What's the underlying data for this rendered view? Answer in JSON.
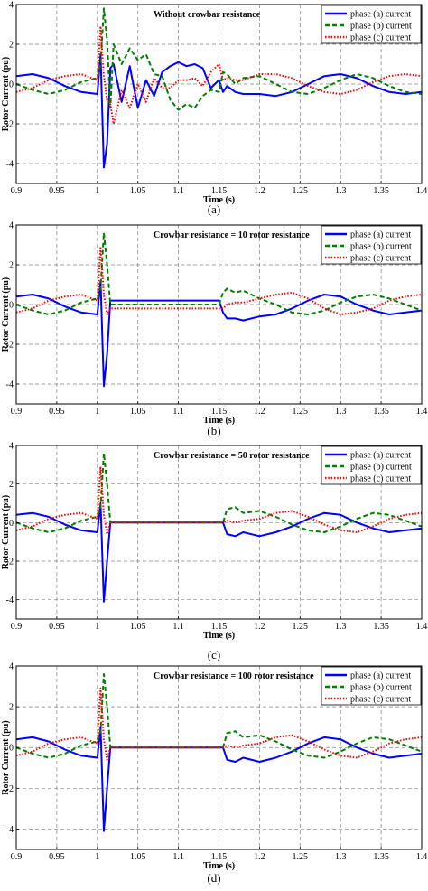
{
  "figure": {
    "subfigure_labels": [
      "(a)",
      "(b)",
      "(c)",
      "(d)"
    ]
  },
  "colors": {
    "phase_a": "#0000ff",
    "phase_b": "#008000",
    "phase_c": "#ff0000",
    "grid": "#808080",
    "axes": "#000000"
  },
  "chart_data": [
    {
      "type": "line",
      "annotation": "Without crowbar resistance",
      "xlabel": "Time (s)",
      "ylabel": "Rotor Current (pu)",
      "xlim": [
        0.9,
        1.4
      ],
      "ylim": [
        -5,
        4
      ],
      "xticks": [
        "0.9",
        "0.95",
        "1",
        "1.05",
        "1.1",
        "1.15",
        "1.2",
        "1.25",
        "1.3",
        "1.35",
        "1.4"
      ],
      "yticks": [
        "-4",
        "-2",
        "0",
        "2",
        "4"
      ],
      "grid": true,
      "legend_position": "top-right",
      "series": [
        {
          "name": "phase (a) current",
          "color": "#0000ff",
          "style": "solid",
          "x": [
            0.9,
            0.92,
            0.94,
            0.96,
            0.98,
            1.0,
            1.004,
            1.008,
            1.012,
            1.016,
            1.02,
            1.03,
            1.04,
            1.05,
            1.06,
            1.07,
            1.08,
            1.09,
            1.1,
            1.11,
            1.12,
            1.13,
            1.14,
            1.15,
            1.155,
            1.16,
            1.17,
            1.18,
            1.2,
            1.22,
            1.24,
            1.26,
            1.28,
            1.3,
            1.32,
            1.34,
            1.36,
            1.38,
            1.4
          ],
          "y": [
            0.4,
            0.5,
            0.3,
            -0.1,
            -0.4,
            -0.5,
            1.5,
            -4.2,
            -3.0,
            0.8,
            1.0,
            -0.9,
            0.9,
            -1.2,
            0.2,
            -0.6,
            0.6,
            0.9,
            1.1,
            0.9,
            1.0,
            0.8,
            -0.2,
            0.2,
            -0.4,
            -0.1,
            -0.4,
            -0.5,
            -0.5,
            -0.6,
            -0.4,
            0.0,
            0.4,
            0.5,
            0.3,
            -0.1,
            -0.4,
            -0.5,
            -0.4
          ]
        },
        {
          "name": "phase (b) current",
          "color": "#008000",
          "style": "dashed",
          "x": [
            0.9,
            0.92,
            0.94,
            0.96,
            0.98,
            1.0,
            1.004,
            1.008,
            1.012,
            1.016,
            1.02,
            1.03,
            1.04,
            1.05,
            1.06,
            1.07,
            1.08,
            1.09,
            1.1,
            1.11,
            1.12,
            1.13,
            1.14,
            1.15,
            1.155,
            1.16,
            1.17,
            1.18,
            1.2,
            1.22,
            1.24,
            1.26,
            1.28,
            1.3,
            1.32,
            1.34,
            1.36,
            1.38,
            1.4
          ],
          "y": [
            0.0,
            -0.3,
            -0.5,
            -0.3,
            0.1,
            0.3,
            1.0,
            3.8,
            2.2,
            -1.2,
            2.0,
            1.0,
            1.8,
            1.2,
            1.5,
            0.5,
            0.4,
            -0.8,
            -1.3,
            -1.0,
            -1.2,
            -0.6,
            -0.3,
            -0.4,
            0.6,
            0.5,
            0.0,
            0.3,
            0.4,
            0.0,
            -0.4,
            -0.5,
            -0.2,
            0.2,
            0.5,
            0.3,
            -0.1,
            -0.4,
            -0.5
          ]
        },
        {
          "name": "phase (c) current",
          "color": "#ff0000",
          "style": "dotted",
          "x": [
            0.9,
            0.92,
            0.94,
            0.96,
            0.98,
            1.0,
            1.004,
            1.008,
            1.012,
            1.016,
            1.02,
            1.03,
            1.04,
            1.05,
            1.06,
            1.07,
            1.08,
            1.09,
            1.1,
            1.11,
            1.12,
            1.13,
            1.14,
            1.15,
            1.155,
            1.16,
            1.17,
            1.18,
            1.2,
            1.22,
            1.24,
            1.26,
            1.28,
            1.3,
            1.32,
            1.34,
            1.36,
            1.38,
            1.4
          ],
          "y": [
            -0.4,
            -0.2,
            0.2,
            0.4,
            0.5,
            0.2,
            2.9,
            0.4,
            -0.8,
            -1.0,
            -2.0,
            -0.3,
            -1.2,
            0.0,
            -0.9,
            0.3,
            -0.2,
            -0.2,
            0.2,
            0.2,
            0.3,
            -0.1,
            0.6,
            1.0,
            0.2,
            0.3,
            0.2,
            0.2,
            0.5,
            0.5,
            0.3,
            -0.1,
            -0.4,
            -0.5,
            -0.3,
            0.1,
            0.4,
            0.5,
            0.4
          ]
        }
      ]
    },
    {
      "type": "line",
      "annotation": "Crowbar resistance = 10 rotor resistance",
      "xlabel": "Time (s)",
      "ylabel": "Rotor Current (pu)",
      "xlim": [
        0.9,
        1.4
      ],
      "ylim": [
        -5,
        4
      ],
      "xticks": [
        "0.9",
        "0.95",
        "1",
        "1.05",
        "1.1",
        "1.15",
        "1.2",
        "1.25",
        "1.3",
        "1.35",
        "1.4"
      ],
      "yticks": [
        "-4",
        "-2",
        "0",
        "2",
        "4"
      ],
      "grid": true,
      "legend_position": "top-right",
      "series": [
        {
          "name": "phase (a) current",
          "color": "#0000ff",
          "style": "solid",
          "x": [
            0.9,
            0.92,
            0.94,
            0.96,
            0.98,
            1.0,
            1.004,
            1.008,
            1.012,
            1.016,
            1.05,
            1.1,
            1.15,
            1.155,
            1.16,
            1.17,
            1.18,
            1.2,
            1.22,
            1.24,
            1.26,
            1.28,
            1.3,
            1.32,
            1.34,
            1.36,
            1.38,
            1.4
          ],
          "y": [
            0.4,
            0.5,
            0.3,
            -0.1,
            -0.4,
            -0.5,
            1.2,
            -4.1,
            -2.5,
            0.2,
            0.2,
            0.2,
            0.2,
            -0.4,
            -0.7,
            -0.7,
            -0.8,
            -0.6,
            -0.5,
            -0.2,
            0.2,
            0.5,
            0.4,
            0.0,
            -0.3,
            -0.5,
            -0.4,
            -0.3
          ]
        },
        {
          "name": "phase (b) current",
          "color": "#008000",
          "style": "dashed",
          "x": [
            0.9,
            0.92,
            0.94,
            0.96,
            0.98,
            1.0,
            1.004,
            1.008,
            1.012,
            1.016,
            1.05,
            1.1,
            1.15,
            1.155,
            1.16,
            1.17,
            1.18,
            1.2,
            1.22,
            1.24,
            1.26,
            1.28,
            1.3,
            1.32,
            1.34,
            1.36,
            1.38,
            1.4
          ],
          "y": [
            0.0,
            -0.3,
            -0.5,
            -0.3,
            0.1,
            0.3,
            0.8,
            3.6,
            2.0,
            0.0,
            0.0,
            0.0,
            0.0,
            0.6,
            0.8,
            0.6,
            0.7,
            0.3,
            0.0,
            -0.4,
            -0.5,
            -0.3,
            0.1,
            0.4,
            0.5,
            0.3,
            0.0,
            -0.3
          ]
        },
        {
          "name": "phase (c) current",
          "color": "#ff0000",
          "style": "dotted",
          "x": [
            0.9,
            0.92,
            0.94,
            0.96,
            0.98,
            1.0,
            1.004,
            1.008,
            1.012,
            1.016,
            1.05,
            1.1,
            1.15,
            1.155,
            1.16,
            1.17,
            1.18,
            1.2,
            1.22,
            1.24,
            1.26,
            1.28,
            1.3,
            1.32,
            1.34,
            1.36,
            1.38,
            1.4
          ],
          "y": [
            -0.4,
            -0.2,
            0.2,
            0.4,
            0.5,
            0.2,
            2.9,
            0.5,
            -0.5,
            -0.2,
            -0.2,
            -0.2,
            -0.2,
            -0.2,
            0.0,
            0.1,
            0.1,
            0.3,
            0.5,
            0.6,
            0.3,
            -0.2,
            -0.5,
            -0.4,
            -0.2,
            0.2,
            0.4,
            0.5
          ]
        }
      ]
    },
    {
      "type": "line",
      "annotation": "Crowbar resistance = 50 rotor resistance",
      "xlabel": "Time (s)",
      "ylabel": "Rotor Current (pu)",
      "xlim": [
        0.9,
        1.4
      ],
      "ylim": [
        -5,
        4
      ],
      "xticks": [
        "0.9",
        "0.95",
        "1",
        "1.05",
        "1.1",
        "1.15",
        "1.2",
        "1.25",
        "1.3",
        "1.35",
        "1.4"
      ],
      "yticks": [
        "-4",
        "-2",
        "0",
        "2",
        "4"
      ],
      "grid": true,
      "legend_position": "top-right",
      "series": [
        {
          "name": "phase (a) current",
          "color": "#0000ff",
          "style": "solid",
          "x": [
            0.9,
            0.92,
            0.94,
            0.96,
            0.98,
            1.0,
            1.004,
            1.008,
            1.012,
            1.016,
            1.05,
            1.1,
            1.155,
            1.16,
            1.17,
            1.18,
            1.2,
            1.22,
            1.24,
            1.26,
            1.28,
            1.3,
            1.32,
            1.34,
            1.36,
            1.38,
            1.4
          ],
          "y": [
            0.4,
            0.5,
            0.3,
            -0.1,
            -0.4,
            -0.5,
            1.0,
            -4.1,
            -2.0,
            0.0,
            0.0,
            0.0,
            0.0,
            -0.6,
            -0.7,
            -0.5,
            -0.7,
            -0.5,
            -0.2,
            0.2,
            0.5,
            0.4,
            0.0,
            -0.3,
            -0.5,
            -0.4,
            -0.3
          ]
        },
        {
          "name": "phase (b) current",
          "color": "#008000",
          "style": "dashed",
          "x": [
            0.9,
            0.92,
            0.94,
            0.96,
            0.98,
            1.0,
            1.004,
            1.008,
            1.012,
            1.016,
            1.05,
            1.1,
            1.155,
            1.16,
            1.17,
            1.18,
            1.2,
            1.22,
            1.24,
            1.26,
            1.28,
            1.3,
            1.32,
            1.34,
            1.36,
            1.38,
            1.4
          ],
          "y": [
            0.0,
            -0.3,
            -0.5,
            -0.3,
            0.1,
            0.3,
            0.8,
            3.6,
            2.0,
            0.0,
            0.0,
            0.0,
            0.0,
            0.7,
            0.8,
            0.5,
            0.6,
            0.3,
            -0.1,
            -0.4,
            -0.5,
            -0.2,
            0.2,
            0.5,
            0.4,
            0.1,
            -0.2
          ]
        },
        {
          "name": "phase (c) current",
          "color": "#ff0000",
          "style": "dotted",
          "x": [
            0.9,
            0.92,
            0.94,
            0.96,
            0.98,
            1.0,
            1.004,
            1.008,
            1.012,
            1.016,
            1.05,
            1.1,
            1.155,
            1.16,
            1.17,
            1.18,
            1.2,
            1.22,
            1.24,
            1.26,
            1.28,
            1.3,
            1.32,
            1.34,
            1.36,
            1.38,
            1.4
          ],
          "y": [
            -0.4,
            -0.2,
            0.2,
            0.4,
            0.5,
            0.2,
            2.9,
            0.4,
            -0.6,
            0.0,
            0.0,
            0.0,
            0.0,
            0.1,
            0.0,
            0.1,
            0.2,
            0.5,
            0.6,
            0.3,
            -0.1,
            -0.4,
            -0.5,
            -0.2,
            0.2,
            0.4,
            0.5
          ]
        }
      ]
    },
    {
      "type": "line",
      "annotation": "Crowbar resistance = 100 rotor resistance",
      "xlabel": "Time (s)",
      "ylabel": "Rotor Current (pu)",
      "xlim": [
        0.9,
        1.4
      ],
      "ylim": [
        -5,
        4
      ],
      "xticks": [
        "0.9",
        "0.95",
        "1",
        "1.05",
        "1.1",
        "1.15",
        "1.2",
        "1.25",
        "1.3",
        "1.35",
        "1.4"
      ],
      "yticks": [
        "-4",
        "-2",
        "0",
        "2",
        "4"
      ],
      "grid": true,
      "legend_position": "top-right",
      "series": [
        {
          "name": "phase (a) current",
          "color": "#0000ff",
          "style": "solid",
          "x": [
            0.9,
            0.92,
            0.94,
            0.96,
            0.98,
            1.0,
            1.004,
            1.008,
            1.012,
            1.016,
            1.05,
            1.1,
            1.155,
            1.16,
            1.17,
            1.18,
            1.2,
            1.22,
            1.24,
            1.26,
            1.28,
            1.3,
            1.32,
            1.34,
            1.36,
            1.38,
            1.4
          ],
          "y": [
            0.4,
            0.5,
            0.3,
            -0.1,
            -0.4,
            -0.5,
            1.0,
            -4.1,
            -2.0,
            0.0,
            0.0,
            0.0,
            0.0,
            -0.6,
            -0.7,
            -0.5,
            -0.7,
            -0.5,
            -0.2,
            0.2,
            0.5,
            0.4,
            0.0,
            -0.3,
            -0.5,
            -0.4,
            -0.3
          ]
        },
        {
          "name": "phase (b) current",
          "color": "#008000",
          "style": "dashed",
          "x": [
            0.9,
            0.92,
            0.94,
            0.96,
            0.98,
            1.0,
            1.004,
            1.008,
            1.012,
            1.016,
            1.05,
            1.1,
            1.155,
            1.16,
            1.17,
            1.18,
            1.2,
            1.22,
            1.24,
            1.26,
            1.28,
            1.3,
            1.32,
            1.34,
            1.36,
            1.38,
            1.4
          ],
          "y": [
            0.0,
            -0.3,
            -0.5,
            -0.3,
            0.1,
            0.3,
            0.8,
            3.6,
            2.0,
            0.0,
            0.0,
            0.0,
            0.0,
            0.7,
            0.8,
            0.5,
            0.6,
            0.3,
            -0.1,
            -0.4,
            -0.5,
            -0.2,
            0.2,
            0.5,
            0.4,
            0.1,
            -0.2
          ]
        },
        {
          "name": "phase (c) current",
          "color": "#ff0000",
          "style": "dotted",
          "x": [
            0.9,
            0.92,
            0.94,
            0.96,
            0.98,
            1.0,
            1.004,
            1.008,
            1.012,
            1.016,
            1.05,
            1.1,
            1.155,
            1.16,
            1.17,
            1.18,
            1.2,
            1.22,
            1.24,
            1.26,
            1.28,
            1.3,
            1.32,
            1.34,
            1.36,
            1.38,
            1.4
          ],
          "y": [
            -0.4,
            -0.2,
            0.2,
            0.4,
            0.5,
            0.2,
            2.9,
            0.4,
            -0.6,
            0.0,
            0.0,
            0.0,
            0.0,
            0.1,
            0.0,
            0.1,
            0.2,
            0.5,
            0.6,
            0.3,
            -0.1,
            -0.4,
            -0.5,
            -0.2,
            0.2,
            0.4,
            0.5
          ]
        }
      ]
    }
  ]
}
